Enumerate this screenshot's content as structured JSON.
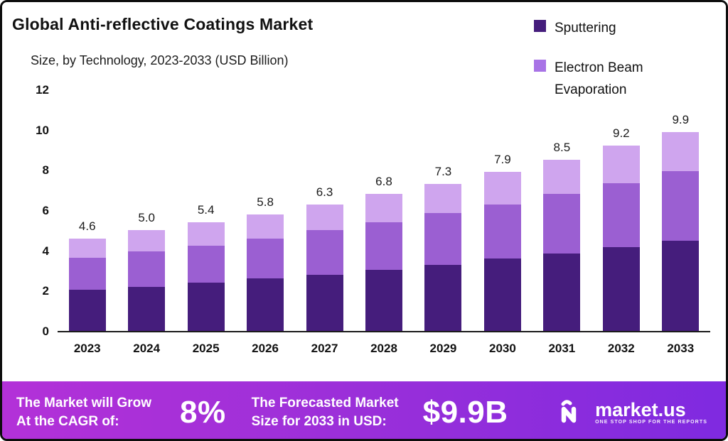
{
  "title": "Global Anti-reflective Coatings Market",
  "subtitle": "Size, by Technology, 2023-2033 (USD Billion)",
  "legend": [
    {
      "label": "Sputtering",
      "color": "#451d7c"
    },
    {
      "label": "Electron Beam Evaporation",
      "color": "#a873e6"
    }
  ],
  "chart_data": {
    "type": "bar",
    "stacked": true,
    "title": "Global Anti-reflective Coatings Market Size, by Technology, 2023-2033 (USD Billion)",
    "categories": [
      "2023",
      "2024",
      "2025",
      "2026",
      "2027",
      "2028",
      "2029",
      "2030",
      "2031",
      "2032",
      "2033"
    ],
    "series": [
      {
        "name": "Sputtering",
        "color": "#451d7c",
        "values": [
          2.05,
          2.2,
          2.4,
          2.6,
          2.8,
          3.05,
          3.3,
          3.6,
          3.85,
          4.15,
          4.5
        ]
      },
      {
        "name": "Electron Beam Evaporation",
        "color": "#9b5fd2",
        "values": [
          1.6,
          1.75,
          1.85,
          2.0,
          2.2,
          2.35,
          2.55,
          2.7,
          2.95,
          3.2,
          3.45
        ]
      },
      {
        "name": "",
        "color": "#cfa5ee",
        "values": [
          0.95,
          1.05,
          1.15,
          1.2,
          1.3,
          1.4,
          1.45,
          1.6,
          1.7,
          1.85,
          1.95
        ]
      }
    ],
    "totals_labels": [
      "4.6",
      "5.0",
      "5.4",
      "5.8",
      "6.3",
      "6.8",
      "7.3",
      "7.9",
      "8.5",
      "9.2",
      "9.9"
    ],
    "xlabel": "",
    "ylabel": "",
    "ylim": [
      0,
      12
    ],
    "yticks": [
      0,
      2,
      4,
      6,
      8,
      10,
      12
    ],
    "grid": false,
    "legend_position": "top-right"
  },
  "banner": {
    "cagr_label_line1": "The Market will Grow",
    "cagr_label_line2": "At the CAGR of:",
    "cagr_value": "8%",
    "forecast_label_line1": "The Forecasted Market",
    "forecast_label_line2": "Size for 2033 in USD:",
    "forecast_value": "$9.9B",
    "brand": "market.us",
    "brand_tagline": "ONE STOP SHOP FOR THE REPORTS",
    "gradient_left": "#b331d8",
    "gradient_mid": "#9a2fd9",
    "gradient_right": "#7f2ae0"
  }
}
